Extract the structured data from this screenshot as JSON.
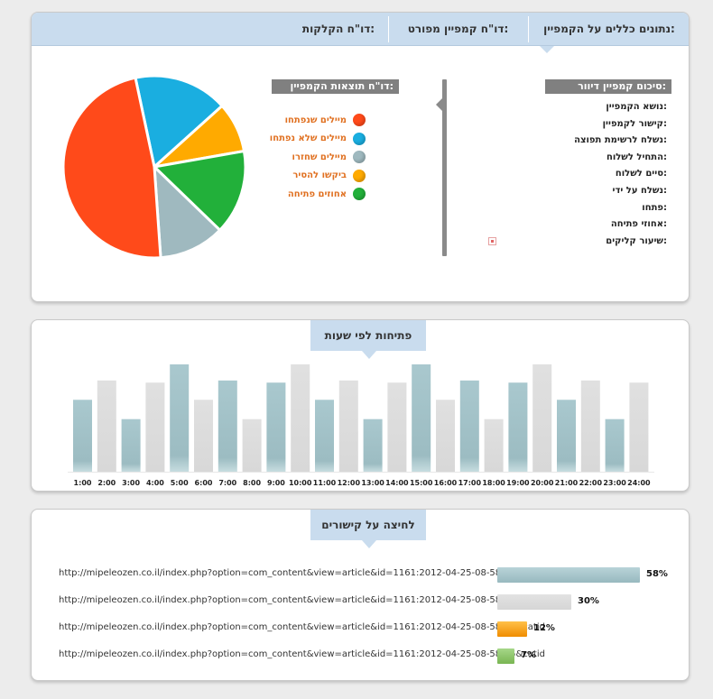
{
  "tabs": {
    "general": "נתונים כללים על הקמפיין:",
    "detailed": "דו\"ח קמפיין מפורט:",
    "clicks": "דו\"ח הקלקות:"
  },
  "summary": {
    "title": "סיכום קמפיין דיוור:",
    "fields": [
      "נושא הקמפיין:",
      "קישור לקמפיין:",
      "נשלח לרשימת תפוצה:",
      "התחיל לשלוח:",
      "סיים לשלוח:",
      "נשלח על ידי:",
      "פתחו:",
      "אחוזי פתיחה:",
      "שיעור קליקים:"
    ]
  },
  "results": {
    "title": "דו\"ח תוצאות הקמפיין:",
    "legend": [
      {
        "label": "מיילים שנפתחו",
        "color": "#ff4a1a"
      },
      {
        "label": "מיילים שלא נפתחו",
        "color": "#1aaee0"
      },
      {
        "label": "מיילים שחזרו",
        "color": "#9fb9bf"
      },
      {
        "label": "ביקשו להסיר",
        "color": "#ffaa00"
      },
      {
        "label": "אחוזים פתיחה",
        "color": "#22b03a"
      }
    ],
    "label_color": "#e07020",
    "pie_colors": [
      "#ff4a1a",
      "#1aaee0",
      "#ffaa00",
      "#22b03a",
      "#9fb9bf"
    ]
  },
  "hours_chart": {
    "title": "פתיחות לפי שעות",
    "chart_data": {
      "type": "bar",
      "categories": [
        "1:00",
        "2:00",
        "3:00",
        "4:00",
        "5:00",
        "6:00",
        "7:00",
        "8:00",
        "9:00",
        "10:00",
        "11:00",
        "12:00",
        "13:00",
        "14:00",
        "15:00",
        "16:00",
        "17:00",
        "18:00",
        "19:00",
        "20:00",
        "21:00",
        "22:00",
        "23:00",
        "24:00"
      ],
      "values": [
        67,
        85,
        49,
        83,
        100,
        67,
        85,
        49,
        83,
        100,
        67,
        85,
        49,
        83,
        100,
        67,
        85,
        49,
        83,
        100,
        67,
        85,
        49,
        83
      ],
      "ylim": [
        0,
        100
      ],
      "colors": [
        "#a7c6cc",
        "#dddddd",
        "#a7c6cc",
        "#dddddd",
        "#a7c6cc",
        "#dddddd",
        "#a7c6cc",
        "#dddddd",
        "#a7c6cc",
        "#dddddd",
        "#a7c6cc",
        "#dddddd",
        "#a7c6cc",
        "#dddddd",
        "#a7c6cc",
        "#dddddd",
        "#a7c6cc",
        "#dddddd",
        "#a7c6cc",
        "#dddddd",
        "#a7c6cc",
        "#dddddd",
        "#a7c6cc",
        "#dddddd"
      ]
    }
  },
  "links": {
    "title": "לחיצה על קישורים",
    "rows": [
      {
        "url": "http://mipeleozen.co.il/index.php?option=com_content&view=article&id=1161:2012-04-25-08-58-45&catid",
        "percent": "58%",
        "value": 58,
        "color": "#a7c6cc"
      },
      {
        "url": "http://mipeleozen.co.il/index.php?option=com_content&view=article&id=1161:2012-04-25-08-58-45&catid",
        "percent": "30%",
        "value": 30,
        "color": "#dddddd"
      },
      {
        "url": "http://mipeleozen.co.il/index.php?option=com_content&view=article&id=1161:2012-04-25-08-58-45&catid",
        "percent": "12%",
        "value": 12,
        "color": "#ffa200"
      },
      {
        "url": "http://mipeleozen.co.il/index.php?option=com_content&view=article&id=1161:2012-04-25-08-58-45&catid",
        "percent": "7%",
        "value": 7,
        "color": "#8fc96a"
      }
    ]
  }
}
